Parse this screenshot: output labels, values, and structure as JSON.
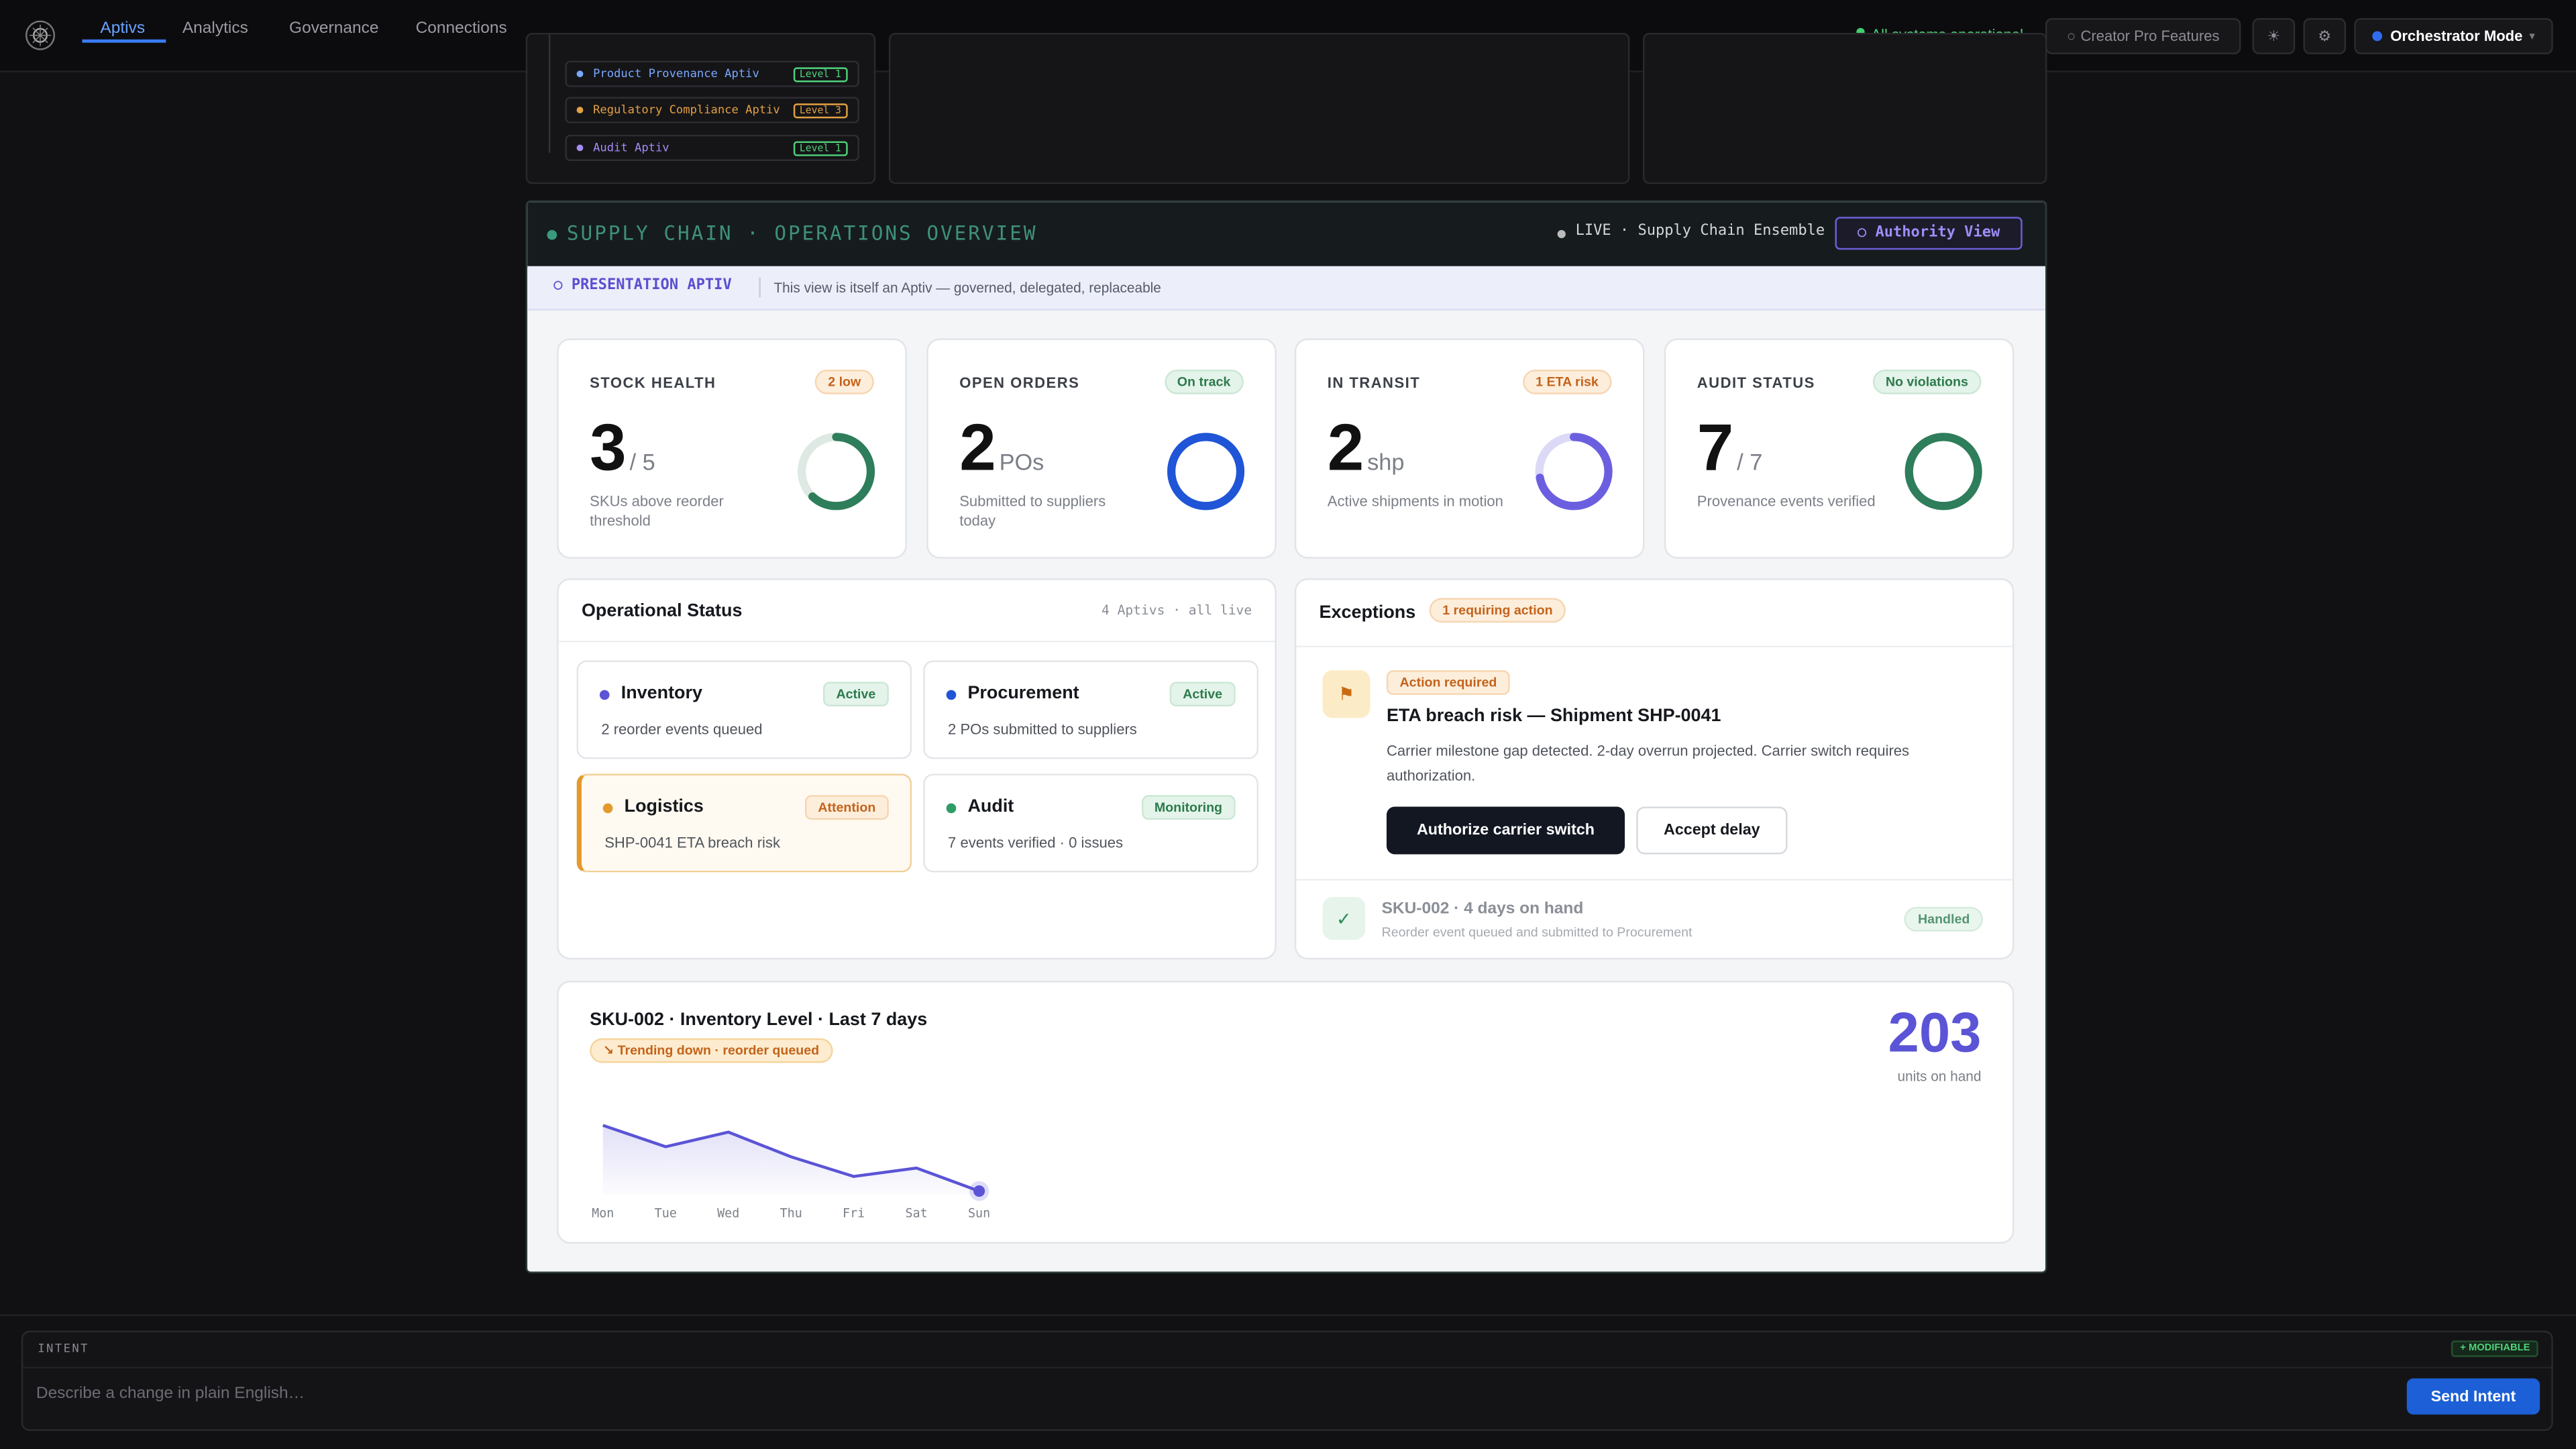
{
  "nav": {
    "tabs": [
      "Aptivs",
      "Analytics",
      "Governance",
      "Connections"
    ],
    "status": "All systems operational",
    "creator": "Creator Pro Features",
    "mode": "Orchestrator Mode"
  },
  "upper_list": [
    {
      "name": "Product Provenance Aptiv",
      "level": "Level 1"
    },
    {
      "name": "Regulatory Compliance Aptiv",
      "level": "Level 3"
    },
    {
      "name": "Audit Aptiv",
      "level": "Level 1"
    }
  ],
  "overview": {
    "title": "SUPPLY CHAIN · OPERATIONS OVERVIEW",
    "live": "LIVE · Supply Chain Ensemble",
    "authority": "Authority View",
    "presentation": "PRESENTATION APTIV",
    "presentation_note": "This view is itself an Aptiv — governed, delegated, replaceable"
  },
  "kpis": [
    {
      "label": "STOCK HEALTH",
      "badge": "2 low",
      "value": "3",
      "unit": "/ 5",
      "caption": "SKUs above reorder threshold"
    },
    {
      "label": "OPEN ORDERS",
      "badge": "On track",
      "value": "2",
      "unit": "POs",
      "caption": "Submitted to suppliers today"
    },
    {
      "label": "IN TRANSIT",
      "badge": "1 ETA risk",
      "value": "2",
      "unit": "shp",
      "caption": "Active shipments in motion"
    },
    {
      "label": "AUDIT STATUS",
      "badge": "No violations",
      "value": "7",
      "unit": "/ 7",
      "caption": "Provenance events verified"
    }
  ],
  "operational": {
    "title": "Operational Status",
    "meta": "4 Aptivs · all live",
    "items": [
      {
        "name": "Inventory",
        "badge": "Active",
        "detail": "2 reorder events queued"
      },
      {
        "name": "Procurement",
        "badge": "Active",
        "detail": "2 POs submitted to suppliers"
      },
      {
        "name": "Logistics",
        "badge": "Attention",
        "detail": "SHP-0041 ETA breach risk"
      },
      {
        "name": "Audit",
        "badge": "Monitoring",
        "detail": "7 events verified · 0 issues"
      }
    ]
  },
  "exceptions": {
    "title": "Exceptions",
    "badge": "1 requiring action",
    "primary": {
      "tag": "Action required",
      "title": "ETA breach risk — Shipment SHP-0041",
      "body": "Carrier milestone gap detected. 2-day overrun projected. Carrier switch requires authorization.",
      "actions": [
        "Authorize carrier switch",
        "Accept delay"
      ]
    },
    "handled": {
      "title": "SKU-002 · 4 days on hand",
      "body": "Reorder event queued and submitted to Procurement",
      "badge": "Handled"
    }
  },
  "chart_data": {
    "type": "line",
    "title": "SKU-002 · Inventory Level · Last 7 days",
    "annotation": "↘ Trending down · reorder queued",
    "categories": [
      "Mon",
      "Tue",
      "Wed",
      "Thu",
      "Fri",
      "Sat",
      "Sun"
    ],
    "values": [
      320,
      282,
      308,
      264,
      229,
      244,
      203
    ],
    "color": "#5b54d6",
    "headline": "203",
    "headline_caption": "units on hand"
  },
  "intent": {
    "label": "INTENT",
    "badge": "+ MODIFIABLE",
    "placeholder": "Describe a change in plain English…",
    "send": "Send Intent"
  }
}
